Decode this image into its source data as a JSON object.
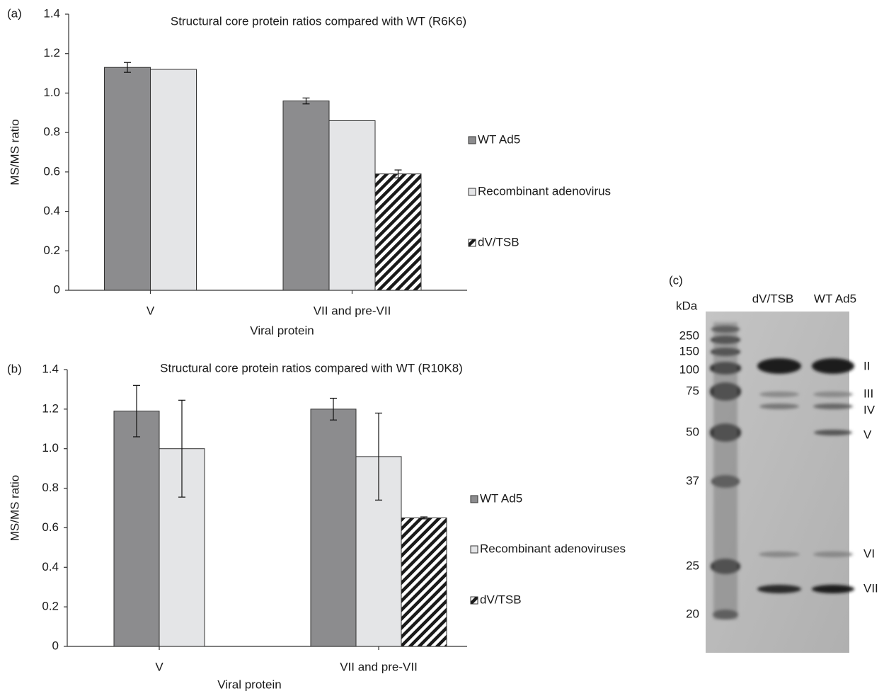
{
  "chart_data": [
    {
      "type": "bar",
      "panel_label": "(a)",
      "title": "Structural core protein ratios compared with WT (R6K6)",
      "y_label": "MS/MS ratio",
      "x_label": "Viral protein",
      "categories": [
        "V",
        "VII and pre-VII"
      ],
      "series": [
        {
          "name": "WT Ad5",
          "color": "#8c8c8e",
          "values": [
            1.13,
            0.96
          ],
          "errors": [
            0.025,
            0.015
          ]
        },
        {
          "name": "Recombinant adenovirus",
          "color": "#e4e5e7",
          "values": [
            1.12,
            0.86
          ],
          "errors": [
            null,
            null
          ]
        },
        {
          "name": "dV/TSB",
          "color": "#1a1a1a",
          "hatch": true,
          "values": [
            null,
            0.59
          ],
          "errors": [
            null,
            0.02
          ]
        }
      ],
      "ylim": [
        0,
        1.4
      ],
      "yticks": [
        0,
        0.2,
        0.4,
        0.6,
        0.8,
        {
          "value": 1,
          "label": "1.0"
        },
        1.2,
        1.4
      ],
      "grid": false,
      "legend": "right"
    },
    {
      "type": "bar",
      "panel_label": "(b)",
      "title": "Structural core protein ratios compared with WT (R10K8)",
      "y_label": "MS/MS ratio",
      "x_label": "Viral protein",
      "categories": [
        "V",
        "VII and pre-VII"
      ],
      "series": [
        {
          "name": "WT Ad5",
          "color": "#8c8c8e",
          "values": [
            1.19,
            1.2
          ],
          "errors": [
            0.13,
            0.055
          ]
        },
        {
          "name": "Recombinant adenoviruses",
          "color": "#e4e5e7",
          "values": [
            1.0,
            0.96
          ],
          "errors": [
            0.245,
            0.22
          ]
        },
        {
          "name": "dV/TSB",
          "color": "#1a1a1a",
          "hatch": true,
          "values": [
            null,
            0.65
          ],
          "errors": [
            null,
            0.005
          ]
        }
      ],
      "ylim": [
        0,
        1.4
      ],
      "yticks": [
        0,
        0.2,
        0.4,
        0.6,
        0.8,
        {
          "value": 1,
          "label": "1.0"
        },
        1.2,
        1.4
      ],
      "grid": false,
      "legend": "right"
    }
  ],
  "gel": {
    "panel_label": "(c)",
    "unit": "kDa",
    "lanes": [
      "dV/TSB",
      "WT Ad5"
    ],
    "markers": [
      250,
      150,
      100,
      75,
      50,
      37,
      25,
      20
    ],
    "bands": [
      "II",
      "III",
      "IV",
      "V",
      "VI",
      "VII"
    ]
  }
}
